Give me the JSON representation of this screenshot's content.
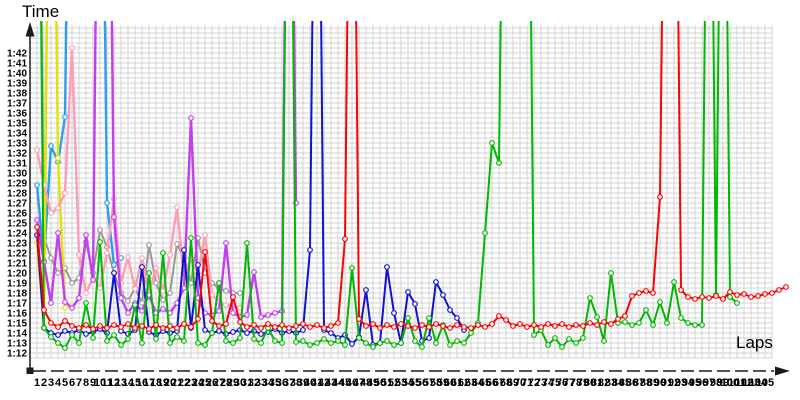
{
  "chart_data": {
    "type": "line",
    "title": "",
    "xlabel": "Laps",
    "ylabel": "Time",
    "grid": true,
    "legend": "none",
    "marker": "open-circle",
    "y_axis": {
      "unit": "m:ss",
      "min_label": "1:12",
      "max_label": "1:42",
      "seconds_min": 72,
      "seconds_max": 102,
      "tick_step_seconds": 1,
      "gridline_step_seconds": 0.5
    },
    "x_axis": {
      "min": 1,
      "max": 105,
      "tick_step": 1
    },
    "y_tick_labels": [
      "1:42",
      "1:41",
      "1:40",
      "1:39",
      "1:38",
      "1:37",
      "1:36",
      "1:35",
      "1:34",
      "1:33",
      "1:32",
      "1:31",
      "1:30",
      "1:29",
      "1:28",
      "1:27",
      "1:26",
      "1:25",
      "1:24",
      "1:23",
      "1:22",
      "1:21",
      "1:20",
      "1:19",
      "1:18",
      "1:17",
      "1:16",
      "1:15",
      "1:14",
      "1:13",
      "1:12"
    ],
    "x_tick_labels": [
      1,
      2,
      3,
      4,
      5,
      6,
      7,
      8,
      9,
      10,
      11,
      12,
      13,
      14,
      15,
      16,
      17,
      18,
      19,
      20,
      21,
      22,
      23,
      24,
      25,
      26,
      27,
      28,
      29,
      30,
      31,
      32,
      33,
      34,
      35,
      36,
      37,
      38,
      39,
      40,
      41,
      42,
      43,
      44,
      45,
      46,
      47,
      48,
      49,
      50,
      51,
      52,
      53,
      54,
      55,
      56,
      57,
      58,
      59,
      60,
      61,
      62,
      63,
      64,
      65,
      66,
      67,
      68,
      69,
      70,
      71,
      72,
      73,
      74,
      75,
      76,
      77,
      78,
      79,
      80,
      81,
      82,
      83,
      84,
      85,
      86,
      87,
      88,
      89,
      90,
      91,
      92,
      93,
      94,
      95,
      96,
      97,
      98,
      99,
      100,
      101,
      102,
      103,
      104,
      105
    ],
    "off_scale_value": 150,
    "off_scale_means": "lap time far above visible scale; line exits top of chart",
    "series": [
      {
        "name": "gray",
        "color": "#989898",
        "values_seconds": [
          150,
          83.5,
          81.5,
          80.0,
          80.5,
          79.0,
          79.5,
          83.1,
          80.0,
          84.3,
          82.6,
          80.0,
          78.0,
          77.2,
          78.5,
          77.0,
          82.8,
          79.0,
          77.3,
          78.0,
          82.9,
          81.5,
          79.0,
          83.5,
          80.0,
          79.0,
          78.5,
          78.2,
          78.0,
          78.0
        ]
      },
      {
        "name": "light-blue",
        "color": "#2d9cf5",
        "values_seconds": [
          88.8,
          81.2,
          92.7,
          91.1,
          95.6,
          150,
          150,
          150,
          150,
          150,
          87.0,
          80.8,
          81.5
        ]
      },
      {
        "name": "yellow",
        "color": "#e2e200",
        "values_seconds": [
          83.0,
          74.6,
          150,
          91.5,
          76.5
        ]
      },
      {
        "name": "pink",
        "color": "#ff9db8",
        "values_seconds": [
          92.3,
          88.8,
          86.0,
          86.5,
          88.0,
          102.5,
          81.8,
          78.0,
          79.5,
          78.5,
          82.0,
          87.4,
          79.0,
          81.6,
          78.4,
          81.5,
          78.0,
          80.5,
          78.2,
          81.8,
          86.6,
          79.5,
          81.5,
          80.0,
          83.8,
          77.8,
          77.1,
          76.8,
          76.8,
          76.5
        ]
      },
      {
        "name": "violet",
        "color": "#c43df2",
        "values_seconds": [
          85.3,
          81.1,
          77.0,
          84.0,
          77.1,
          76.5,
          77.5,
          83.8,
          79.3,
          150,
          150,
          85.6,
          77.5,
          76.0,
          77.0,
          76.2,
          77.8,
          76.0,
          76.4,
          76.0,
          77.0,
          78.5,
          95.5,
          77.5,
          76.0,
          75.8,
          76.2,
          83.0,
          76.0,
          75.6,
          75.8,
          80.1,
          75.6,
          75.8,
          76.0,
          76.2,
          150,
          87.0
        ]
      },
      {
        "name": "dark-blue",
        "color": "#1212cf",
        "values_seconds": [
          83.8,
          74.5,
          74.0,
          73.8,
          74.2,
          74.0,
          74.3,
          73.9,
          74.1,
          74.4,
          74.0,
          80.0,
          74.2,
          73.9,
          74.3,
          80.6,
          74.1,
          73.8,
          74.2,
          74.0,
          74.2,
          82.3,
          74.5,
          80.8,
          74.3,
          74.0,
          74.2,
          73.9,
          74.1,
          74.3,
          74.0,
          74.2,
          73.9,
          74.1,
          74.4,
          74.0,
          74.2,
          74.0,
          74.3,
          82.3,
          150,
          74.3,
          74.0,
          73.5,
          73.8,
          72.9,
          73.6,
          78.3,
          72.8,
          73.0,
          80.6,
          76.0,
          73.0,
          78.1,
          76.9,
          73.2,
          73.5,
          79.1,
          77.8,
          76.3,
          75.5,
          74.3
        ]
      },
      {
        "name": "green",
        "color": "#00b800",
        "values_seconds": [
          150,
          74.5,
          73.6,
          73.0,
          72.5,
          73.8,
          73.0,
          77.0,
          73.5,
          83.1,
          73.2,
          73.8,
          72.8,
          73.4,
          76.8,
          73.0,
          80.0,
          73.4,
          82.0,
          73.0,
          73.6,
          73.2,
          83.5,
          73.0,
          72.8,
          74.0,
          79.0,
          73.2,
          73.0,
          73.5,
          83.0,
          73.4,
          73.0,
          74.5,
          73.2,
          73.0,
          150,
          73.1,
          73.2,
          72.8,
          73.0,
          73.4,
          73.0,
          73.2,
          72.8,
          80.5,
          73.5,
          73.0,
          72.6,
          73.0,
          73.2,
          72.8,
          73.0,
          75.5,
          73.2,
          72.6,
          75.5,
          73.0,
          74.8,
          72.8,
          73.2,
          73.0,
          74.0,
          75.0,
          84.0,
          93.0,
          91.0,
          150,
          150,
          150,
          150,
          73.8,
          74.3,
          72.8,
          73.5,
          72.6,
          73.4,
          73.0,
          73.5,
          77.5,
          75.6,
          73.2,
          80.0,
          75.0,
          75.1,
          74.8,
          75.0,
          76.3,
          74.8,
          77.1,
          75.0,
          79.1,
          75.5,
          75.0,
          74.8,
          74.8,
          150,
          77.8,
          150,
          77.6,
          77.0
        ]
      },
      {
        "name": "red",
        "color": "#f50505",
        "values_seconds": [
          84.6,
          76.3,
          75.0,
          74.6,
          75.2,
          74.7,
          74.5,
          74.8,
          74.4,
          74.7,
          74.5,
          74.8,
          74.6,
          74.9,
          74.5,
          74.7,
          74.4,
          74.8,
          74.5,
          74.7,
          74.5,
          74.9,
          74.6,
          75.4,
          82.1,
          75.2,
          74.7,
          74.9,
          77.6,
          75.1,
          74.6,
          74.8,
          74.5,
          74.9,
          74.6,
          74.8,
          74.5,
          74.7,
          74.9,
          74.6,
          74.8,
          74.5,
          74.7,
          75.0,
          83.4,
          150,
          75.4,
          74.7,
          74.9,
          74.5,
          74.8,
          74.6,
          74.9,
          74.7,
          74.5,
          74.8,
          74.6,
          74.9,
          74.7,
          74.5,
          74.8,
          74.6,
          74.5,
          74.8,
          74.6,
          74.9,
          75.7,
          75.3,
          74.7,
          74.9,
          74.6,
          74.8,
          74.6,
          74.9,
          74.7,
          74.9,
          74.6,
          74.8,
          74.7,
          75.0,
          74.8,
          75.1,
          74.9,
          75.4,
          75.7,
          77.7,
          78.0,
          78.2,
          78.0,
          87.6,
          150,
          150,
          78.3,
          77.6,
          77.4,
          77.6,
          77.5,
          77.7,
          77.4,
          78.1,
          77.8,
          77.9,
          77.6,
          77.7,
          77.9,
          78.0,
          78.3,
          78.6
        ]
      }
    ]
  }
}
